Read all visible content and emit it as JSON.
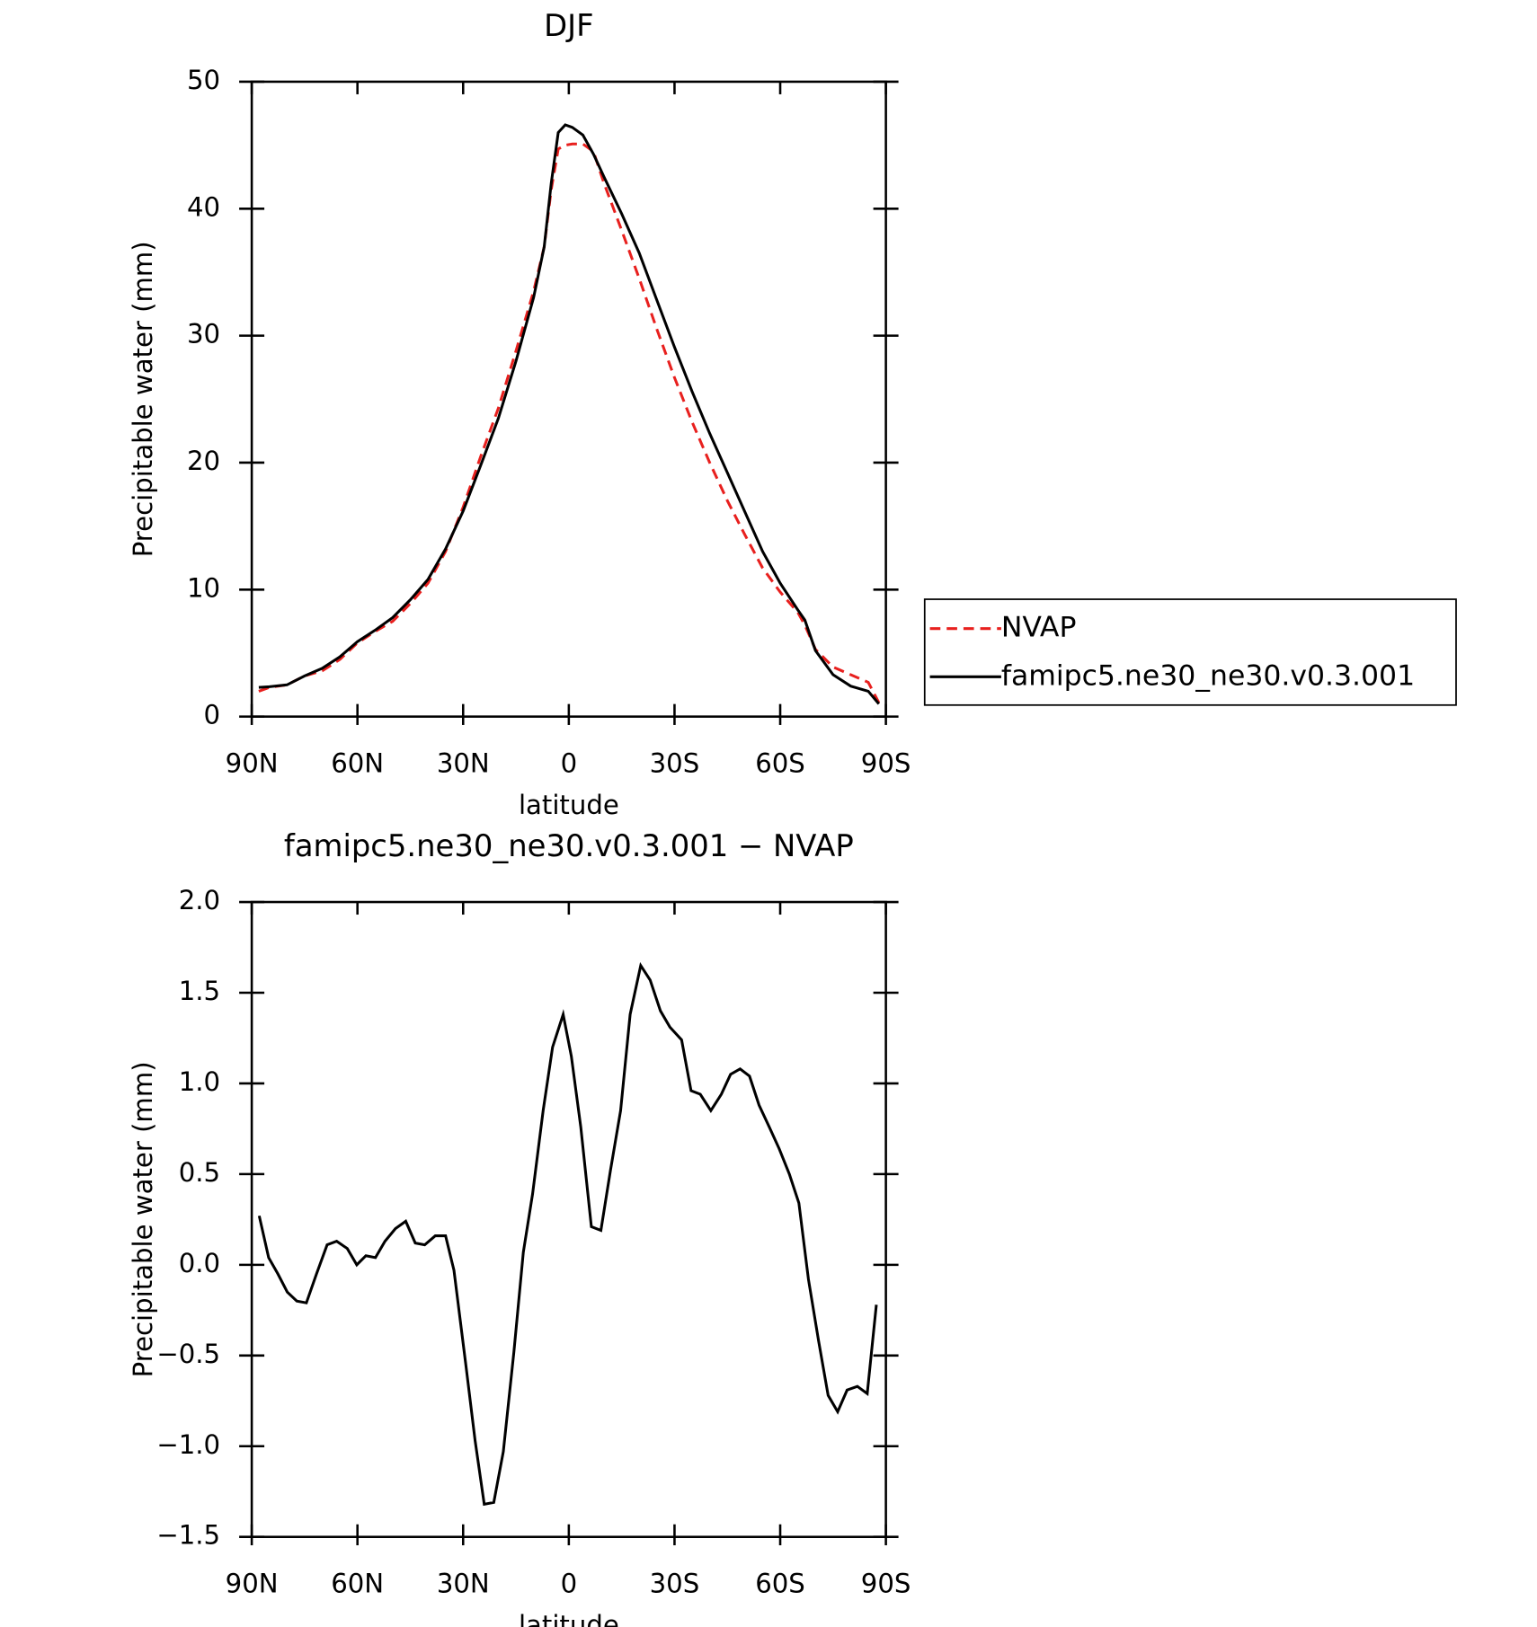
{
  "chart_data": [
    {
      "type": "line",
      "title": "DJF",
      "xlabel": "latitude",
      "ylabel": "Precipitable water (mm)",
      "xlim": [
        90,
        -90
      ],
      "xticks": [
        {
          "value": 90,
          "label": "90N"
        },
        {
          "value": 60,
          "label": "60N"
        },
        {
          "value": 30,
          "label": "30N"
        },
        0,
        {
          "value": -30,
          "label": "30S"
        },
        {
          "value": -60,
          "label": "60S"
        },
        {
          "value": -90,
          "label": "90S"
        }
      ],
      "ylim": [
        0,
        50
      ],
      "yticks": [
        0,
        10,
        20,
        30,
        40,
        50
      ],
      "x": [
        88,
        85,
        80,
        75,
        70,
        65,
        60,
        55,
        50,
        45,
        40,
        35,
        30,
        25,
        20,
        15,
        10,
        7,
        5,
        3,
        1,
        -1,
        -4,
        -7,
        -10,
        -15,
        -20,
        -25,
        -30,
        -35,
        -40,
        -45,
        -50,
        -55,
        -60,
        -65,
        -67,
        -70,
        -75,
        -80,
        -85,
        -88
      ],
      "legend": "right-outside",
      "series": [
        {
          "name": "NVAP",
          "color": "#e8201e",
          "line_style": "dashed",
          "values": [
            2.0,
            2.3,
            2.5,
            3.2,
            3.6,
            4.5,
            5.8,
            6.7,
            7.5,
            8.9,
            10.5,
            13.0,
            16.5,
            20.5,
            24.3,
            28.8,
            33.5,
            37.0,
            41.5,
            44.7,
            45.0,
            45.1,
            45.1,
            44.5,
            42.0,
            38.3,
            34.5,
            30.5,
            26.7,
            23.2,
            20.0,
            17.0,
            14.3,
            11.7,
            9.8,
            8.2,
            7.2,
            5.3,
            3.9,
            3.3,
            2.7,
            1.1
          ]
        },
        {
          "name": "famipc5.ne30_ne30.v0.3.001",
          "color": "#000000",
          "line_style": "solid",
          "values": [
            2.3,
            2.35,
            2.5,
            3.2,
            3.8,
            4.7,
            5.9,
            6.8,
            7.8,
            9.2,
            10.8,
            13.2,
            16.2,
            19.8,
            23.5,
            28.0,
            33.0,
            37.0,
            42.0,
            46.0,
            46.6,
            46.4,
            45.8,
            44.3,
            42.5,
            39.6,
            36.5,
            32.8,
            29.1,
            25.6,
            22.3,
            19.2,
            16.1,
            13.0,
            10.5,
            8.4,
            7.6,
            5.2,
            3.3,
            2.4,
            2.0,
            1.0
          ]
        }
      ]
    },
    {
      "type": "line",
      "title": "famipc5.ne30_ne30.v0.3.001 − NVAP",
      "xlabel": "latitude",
      "ylabel": "Precipitable water (mm)",
      "xlim": [
        90,
        -90
      ],
      "xticks": [
        {
          "value": 90,
          "label": "90N"
        },
        {
          "value": 60,
          "label": "60N"
        },
        {
          "value": 30,
          "label": "30N"
        },
        0,
        {
          "value": -30,
          "label": "30S"
        },
        {
          "value": -60,
          "label": "60S"
        },
        {
          "value": -90,
          "label": "90S"
        }
      ],
      "ylim": [
        -1.5,
        2.0
      ],
      "yticks": [
        {
          "value": -1.5,
          "label": "−1.5"
        },
        {
          "value": -1.0,
          "label": "−1.0"
        },
        {
          "value": -0.5,
          "label": "−0.5"
        },
        {
          "value": 0,
          "label": "0.0"
        },
        {
          "value": 0.5,
          "label": "0.5"
        },
        {
          "value": 1.0,
          "label": "1.0"
        },
        {
          "value": 1.5,
          "label": "1.5"
        },
        {
          "value": 2.0,
          "label": "2.0"
        }
      ],
      "x": [
        87.9,
        85.2,
        82.6,
        79.9,
        77.2,
        74.5,
        71.6,
        68.6,
        65.9,
        62.9,
        60.2,
        57.6,
        54.9,
        52.2,
        49.2,
        46.3,
        43.6,
        40.9,
        37.9,
        35.0,
        32.6,
        29.3,
        26.6,
        24.0,
        21.3,
        18.6,
        15.6,
        12.9,
        10.3,
        7.3,
        4.6,
        1.6,
        -0.7,
        -3.4,
        -6.4,
        -9.1,
        -11.8,
        -14.7,
        -17.4,
        -20.4,
        -23.1,
        -26.0,
        -28.7,
        -32.0,
        -34.7,
        -37.3,
        -40.3,
        -43.3,
        -45.9,
        -48.6,
        -51.3,
        -54.0,
        -56.9,
        -59.7,
        -62.6,
        -65.3,
        -68.0,
        -70.9,
        -73.6,
        -76.3,
        -79.0,
        -81.9,
        -84.7,
        -87.3
      ],
      "series": [
        {
          "color": "#000000",
          "line_style": "solid",
          "values": [
            0.27,
            0.04,
            -0.05,
            -0.15,
            -0.2,
            -0.21,
            -0.05,
            0.11,
            0.13,
            0.09,
            0.0,
            0.05,
            0.04,
            0.13,
            0.2,
            0.24,
            0.12,
            0.11,
            0.16,
            0.16,
            -0.03,
            -0.54,
            -0.97,
            -1.32,
            -1.31,
            -1.03,
            -0.48,
            0.07,
            0.39,
            0.85,
            1.2,
            1.38,
            1.15,
            0.76,
            0.21,
            0.19,
            0.52,
            0.85,
            1.38,
            1.65,
            1.57,
            1.4,
            1.31,
            1.24,
            0.96,
            0.94,
            0.85,
            0.94,
            1.05,
            1.08,
            1.04,
            0.88,
            0.76,
            0.64,
            0.5,
            0.34,
            -0.08,
            -0.42,
            -0.72,
            -0.81,
            -0.69,
            -0.67,
            -0.71,
            -0.22
          ]
        }
      ]
    }
  ]
}
